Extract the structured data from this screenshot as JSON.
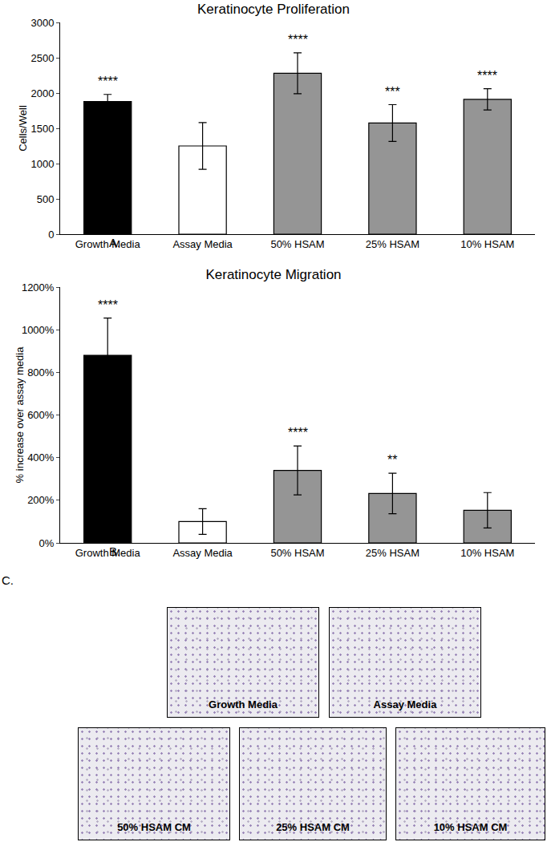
{
  "chart_data": [
    {
      "type": "bar",
      "panel_label": "A.",
      "title": "Keratinocyte Proliferation",
      "y_label": "Cells/Well",
      "categories": [
        "Growth Media",
        "Assay Media",
        "50% HSAM",
        "25% HSAM",
        "10% HSAM"
      ],
      "values": [
        1880,
        1250,
        2280,
        1575,
        1910
      ],
      "errors": [
        100,
        330,
        290,
        260,
        150
      ],
      "colors": [
        "#000000",
        "#ffffff",
        "#959595",
        "#959595",
        "#959595"
      ],
      "annotations": [
        {
          "category": "Growth Media",
          "text": "****"
        },
        {
          "category": "50% HSAM",
          "text": "****"
        },
        {
          "category": "25% HSAM",
          "text": "***"
        },
        {
          "category": "10% HSAM",
          "text": "****"
        }
      ],
      "ylim": [
        0,
        3000
      ],
      "yticks": [
        0,
        500,
        1000,
        1500,
        2000,
        2500,
        3000
      ],
      "grid": false
    },
    {
      "type": "bar",
      "panel_label": "B.",
      "title": "Keratinocyte Migration",
      "y_label": "% increase over assay media",
      "categories": [
        "Growth Media",
        "Assay Media",
        "50% HSAM",
        "25% HSAM",
        "10% HSAM"
      ],
      "values": [
        880,
        100,
        340,
        232,
        153
      ],
      "errors": [
        175,
        60,
        115,
        95,
        83
      ],
      "colors": [
        "#000000",
        "#ffffff",
        "#959595",
        "#959595",
        "#959595"
      ],
      "annotations": [
        {
          "category": "Growth Media",
          "text": "****"
        },
        {
          "category": "50% HSAM",
          "text": "****"
        },
        {
          "category": "25% HSAM",
          "text": "**"
        }
      ],
      "ylim": [
        0,
        1200
      ],
      "yticks": [
        {
          "value": 0,
          "label": "0%"
        },
        {
          "value": 200,
          "label": "200%"
        },
        {
          "value": 400,
          "label": "400%"
        },
        {
          "value": 600,
          "label": "600%"
        },
        {
          "value": 800,
          "label": "800%"
        },
        {
          "value": 1000,
          "label": "1000%"
        },
        {
          "value": 1200,
          "label": "1200%"
        }
      ],
      "grid": false
    }
  ],
  "image_panel": {
    "label": "C.",
    "images": [
      "Growth Media",
      "Assay Media",
      "50% HSAM CM",
      "25% HSAM CM",
      "10% HSAM CM"
    ]
  }
}
